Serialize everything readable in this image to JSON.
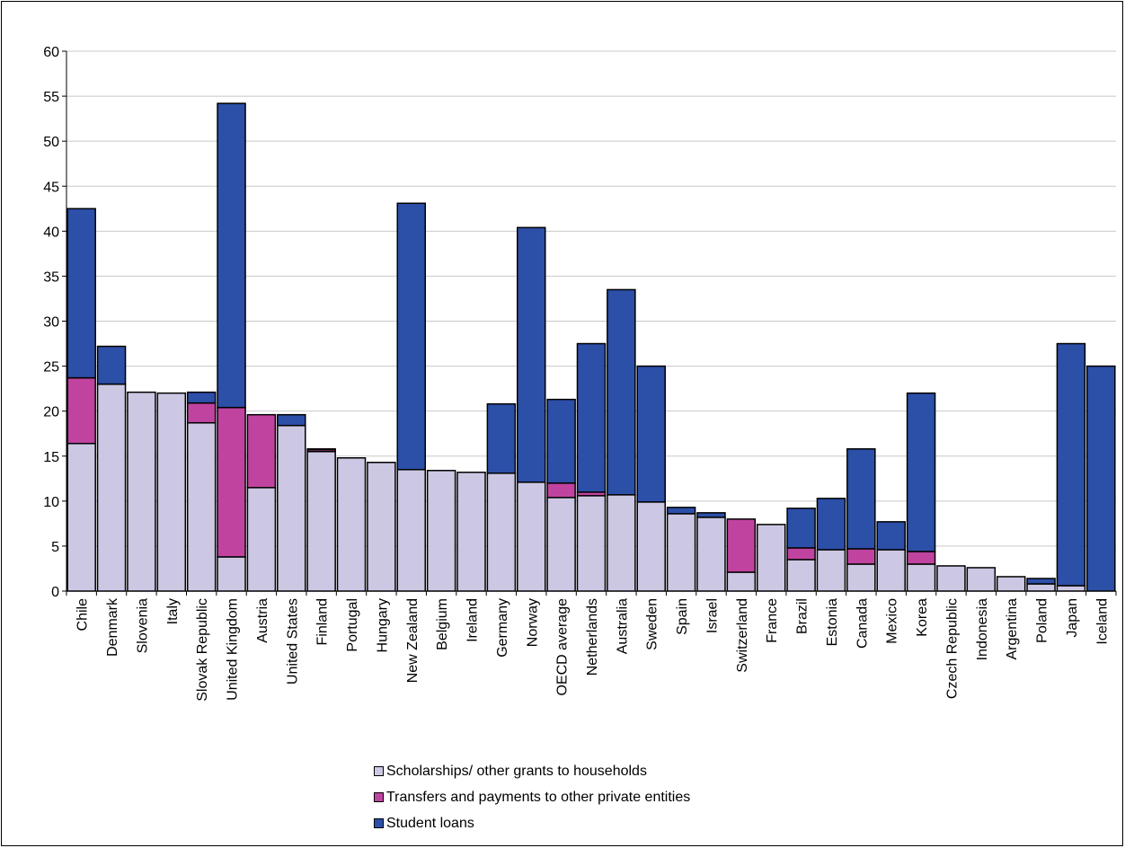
{
  "chart_data": {
    "type": "bar",
    "stacked": true,
    "categories": [
      "Chile",
      "Denmark",
      "Slovenia",
      "Italy",
      "Slovak Republic",
      "United Kingdom",
      "Austria",
      "United States",
      "Finland",
      "Portugal",
      "Hungary",
      "New Zealand",
      "Belgium",
      "Ireland",
      "Germany",
      "Norway",
      "OECD average",
      "Netherlands",
      "Australia",
      "Sweden",
      "Spain",
      "Israel",
      "Switzerland",
      "France",
      "Brazil",
      "Estonia",
      "Canada",
      "Mexico",
      "Korea",
      "Czech Republic",
      "Indonesia",
      "Argentina",
      "Poland",
      "Japan",
      "Iceland"
    ],
    "series": [
      {
        "name": "Scholarships/ other grants to households",
        "color": "#ccc8e4",
        "values": [
          16.4,
          23.0,
          22.1,
          22.0,
          18.7,
          3.8,
          11.5,
          18.4,
          15.5,
          14.8,
          14.3,
          13.5,
          13.4,
          13.2,
          13.1,
          12.1,
          10.4,
          10.6,
          10.7,
          9.9,
          8.6,
          8.2,
          2.1,
          7.4,
          3.5,
          4.6,
          3.0,
          4.6,
          3.0,
          2.8,
          2.6,
          1.6,
          0.8,
          0.6,
          0.0
        ]
      },
      {
        "name": "Transfers and payments to other private entities",
        "color": "#c0449f",
        "values": [
          7.3,
          0.0,
          0.0,
          0.0,
          2.2,
          16.6,
          8.1,
          0.0,
          0.2,
          0.0,
          0.0,
          0.0,
          0.0,
          0.0,
          0.0,
          0.0,
          1.6,
          0.4,
          0.0,
          0.0,
          0.0,
          0.0,
          5.9,
          0.0,
          1.3,
          0.0,
          1.7,
          0.0,
          1.4,
          0.0,
          0.0,
          0.0,
          0.0,
          0.0,
          0.0
        ]
      },
      {
        "name": "Student loans",
        "color": "#2c4fa8",
        "values": [
          18.8,
          4.2,
          0.0,
          0.0,
          1.2,
          33.8,
          0.0,
          1.2,
          0.1,
          0.0,
          0.0,
          29.6,
          0.0,
          0.0,
          7.7,
          28.3,
          9.3,
          16.5,
          22.8,
          15.1,
          0.7,
          0.5,
          0.0,
          0.0,
          4.4,
          5.7,
          11.1,
          3.1,
          17.6,
          0.0,
          0.0,
          0.0,
          0.6,
          26.9,
          25.0
        ]
      }
    ],
    "ylim": [
      0,
      60
    ],
    "yticks": [
      "0",
      "5",
      "10",
      "15",
      "20",
      "25",
      "30",
      "35",
      "40",
      "45",
      "50",
      "55",
      "60"
    ],
    "grid": true,
    "legend_position": "bottom"
  }
}
